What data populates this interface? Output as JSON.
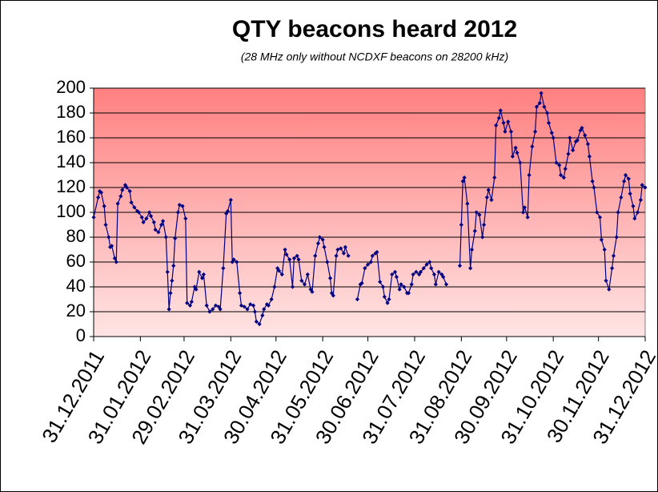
{
  "chart_data": {
    "type": "line",
    "title": "QTY beacons heard 2012",
    "subtitle": "(28 MHz only without NCDXF beacons on 28200 kHz)",
    "xlim": [
      "31.12.2011",
      "31.12.2012"
    ],
    "xticks": [
      "31.12.2011",
      "31.01.2012",
      "29.02.2012",
      "31.03.2012",
      "30.04.2012",
      "31.05.2012",
      "30.06.2012",
      "31.07.2012",
      "31.08.2012",
      "30.09.2012",
      "31.10.2012",
      "30.11.2012",
      "31.12.2012"
    ],
    "ylim": [
      0,
      200
    ],
    "yticks": [
      0,
      20,
      40,
      60,
      80,
      100,
      120,
      140,
      160,
      180,
      200
    ],
    "grid": true,
    "background": [
      "#ff8080",
      "#ffe4e4"
    ],
    "series": [
      {
        "color": "#000080",
        "x": [
          "31.12.2011",
          "03.01.2012",
          "04.01.2012",
          "05.01.2012",
          "07.01.2012",
          "08.01.2012",
          "10.01.2012",
          "11.01.2012",
          "12.01.2012",
          "14.01.2012",
          "15.01.2012",
          "16.01.2012",
          "18.01.2012",
          "19.01.2012",
          "21.01.2012",
          "22.01.2012",
          "24.01.2012",
          "25.01.2012",
          "27.01.2012",
          "29.01.2012",
          "30.01.2012",
          "01.02.2012",
          "02.02.2012",
          "04.02.2012",
          "06.02.2012",
          "07.02.2012",
          "09.02.2012",
          "10.02.2012",
          "12.02.2012",
          "14.02.2012",
          "15.02.2012",
          "17.02.2012",
          "18.02.2012",
          "19.02.2012",
          "20.02.2012",
          "21.02.2012",
          "22.02.2012",
          "23.02.2012",
          "25.02.2012",
          "26.02.2012",
          "28.02.2012",
          "01.03.2012",
          "02.03.2012",
          "04.03.2012",
          "05.03.2012",
          "07.03.2012",
          "08.03.2012",
          "10.03.2012",
          "12.03.2012",
          "13.03.2012",
          "15.03.2012",
          "17.03.2012",
          "19.03.2012",
          "21.03.2012",
          "23.03.2012",
          "24.03.2012",
          "26.03.2012",
          "28.03.2012",
          "29.03.2012",
          "31.03.2012",
          "01.04.2012",
          "02.04.2012",
          "04.04.2012",
          "06.04.2012",
          "07.04.2012",
          "09.04.2012",
          "11.04.2012",
          "13.04.2012",
          "15.04.2012",
          "16.04.2012",
          "17.04.2012",
          "19.04.2012",
          "21.04.2012",
          "22.04.2012",
          "24.04.2012",
          "25.04.2012",
          "27.04.2012",
          "29.04.2012",
          "01.05.2012",
          "02.05.2012",
          "04.05.2012",
          "06.05.2012",
          "07.05.2012",
          "09.05.2012",
          "11.05.2012",
          "12.05.2012",
          "14.05.2012",
          "15.05.2012",
          "17.05.2012",
          "19.05.2012",
          "21.05.2012",
          "23.05.2012",
          "24.05.2012",
          "26.05.2012",
          "28.05.2012",
          "29.05.2012",
          "31.05.2012",
          "01.06.2012",
          "03.06.2012",
          "05.06.2012",
          "06.06.2012",
          "07.06.2012",
          "09.06.2012",
          "10.06.2012",
          "12.06.2012",
          "14.06.2012",
          "15.06.2012",
          "17.06.2012",
          "20.06.2012",
          "23.06.2012",
          "25.06.2012",
          "26.06.2012",
          "28.06.2012",
          "30.06.2012",
          "02.07.2012",
          "03.07.2012",
          "05.07.2012",
          "06.07.2012",
          "08.07.2012",
          "10.07.2012",
          "11.07.2012",
          "13.07.2012",
          "14.07.2012",
          "16.07.2012",
          "18.07.2012",
          "19.07.2012",
          "21.07.2012",
          "22.07.2012",
          "24.07.2012",
          "26.07.2012",
          "27.07.2012",
          "29.07.2012",
          "30.07.2012",
          "01.08.2012",
          "03.08.2012",
          "04.08.2012",
          "06.08.2012",
          "08.08.2012",
          "10.08.2012",
          "11.08.2012",
          "13.08.2012",
          "14.08.2012",
          "16.08.2012",
          "18.08.2012",
          "19.08.2012",
          "21.08.2012",
          "25.08.2012",
          "30.08.2012",
          "31.08.2012",
          "01.09.2012",
          "02.09.2012",
          "04.09.2012",
          "06.09.2012",
          "07.09.2012",
          "09.09.2012",
          "10.09.2012",
          "12.09.2012",
          "14.09.2012",
          "15.09.2012",
          "17.09.2012",
          "18.09.2012",
          "20.09.2012",
          "22.09.2012",
          "23.09.2012",
          "25.09.2012",
          "26.09.2012",
          "28.09.2012",
          "29.09.2012",
          "01.10.2012",
          "03.10.2012",
          "04.10.2012",
          "06.10.2012",
          "07.10.2012",
          "09.10.2012",
          "11.10.2012",
          "12.10.2012",
          "14.10.2012",
          "15.10.2012",
          "17.10.2012",
          "19.10.2012",
          "20.10.2012",
          "22.10.2012",
          "23.10.2012",
          "25.10.2012",
          "27.10.2012",
          "28.10.2012",
          "30.10.2012",
          "31.10.2012",
          "02.11.2012",
          "04.11.2012",
          "05.11.2012",
          "07.11.2012",
          "08.11.2012",
          "10.11.2012",
          "11.11.2012",
          "13.11.2012",
          "15.11.2012",
          "16.11.2012",
          "18.11.2012",
          "19.11.2012",
          "21.11.2012",
          "23.11.2012",
          "24.11.2012",
          "26.11.2012",
          "27.11.2012",
          "29.11.2012",
          "01.12.2012",
          "02.12.2012",
          "04.12.2012",
          "05.12.2012",
          "07.12.2012",
          "09.12.2012",
          "10.12.2012",
          "12.12.2012",
          "13.12.2012",
          "15.12.2012",
          "17.12.2012",
          "18.12.2012",
          "20.12.2012",
          "21.12.2012",
          "23.12.2012",
          "24.12.2012",
          "26.12.2012",
          "28.12.2012",
          "29.12.2012",
          "31.12.2012"
        ],
        "values": [
          96,
          112,
          117,
          116,
          105,
          90,
          80,
          72,
          73,
          63,
          60,
          107,
          113,
          118,
          122,
          120,
          117,
          108,
          104,
          101,
          100,
          96,
          92,
          95,
          100,
          97,
          92,
          86,
          84,
          90,
          93,
          80,
          52,
          22,
          35,
          45,
          57,
          79,
          100,
          106,
          105,
          95,
          27,
          25,
          28,
          40,
          38,
          52,
          47,
          50,
          25,
          20,
          22,
          25,
          24,
          22,
          55,
          99,
          101,
          110,
          60,
          62,
          60,
          35,
          25,
          24,
          22,
          26,
          25,
          20,
          12,
          10,
          17,
          22,
          26,
          25,
          30,
          40,
          55,
          53,
          50,
          70,
          66,
          62,
          40,
          63,
          65,
          62,
          45,
          42,
          50,
          38,
          36,
          65,
          75,
          80,
          78,
          72,
          60,
          47,
          35,
          33,
          65,
          70,
          71,
          67,
          72,
          65,
          null,
          30,
          42,
          43,
          55,
          58,
          60,
          65,
          67,
          68,
          44,
          40,
          32,
          27,
          30,
          50,
          52,
          48,
          38,
          42,
          40,
          35,
          35,
          42,
          50,
          52,
          50,
          52,
          55,
          58,
          60,
          55,
          50,
          42,
          52,
          50,
          48,
          42,
          null,
          57,
          90,
          125,
          128,
          107,
          55,
          70,
          85,
          100,
          98,
          80,
          90,
          112,
          118,
          110,
          128,
          170,
          176,
          182,
          172,
          165,
          173,
          165,
          145,
          152,
          148,
          140,
          100,
          104,
          96,
          130,
          153,
          165,
          185,
          188,
          196,
          185,
          180,
          172,
          164,
          160,
          140,
          138,
          130,
          128,
          135,
          147,
          160,
          150,
          157,
          158,
          166,
          168,
          162,
          155,
          145,
          125,
          120,
          100,
          96,
          78,
          70,
          45,
          38,
          55,
          65,
          80,
          100,
          112,
          125,
          130,
          127,
          115,
          105,
          95,
          100,
          110,
          122,
          120
        ]
      }
    ]
  }
}
